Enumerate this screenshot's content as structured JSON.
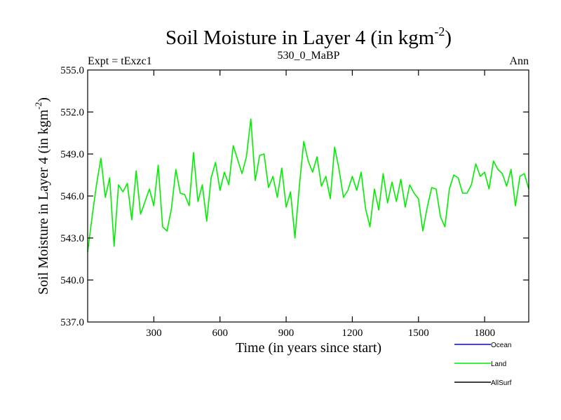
{
  "chart_data": {
    "type": "line",
    "title": "Soil Moisture in Layer 4 (in kgm",
    "title_exponent": "-2",
    "title_close": ")",
    "subtitle_left": "Expt = tExzc1",
    "subtitle_center": "530_0_MaBP",
    "subtitle_right": "Ann",
    "xlabel": "Time (in years since start)",
    "ylabel": "Soil Moisture in Layer 4 (in kgm",
    "ylabel_exponent": "-2",
    "ylabel_close": ")",
    "xlim": [
      0,
      2000
    ],
    "ylim": [
      537.0,
      555.0
    ],
    "xticks": [
      300,
      600,
      900,
      1200,
      1500,
      1800
    ],
    "xtick_labels": [
      "300",
      "600",
      "900",
      "1200",
      "1500",
      "1800"
    ],
    "yticks": [
      537.0,
      540.0,
      543.0,
      546.0,
      549.0,
      552.0,
      555.0
    ],
    "ytick_labels": [
      "537.0",
      "540.0",
      "543.0",
      "546.0",
      "549.0",
      "552.0",
      "555.0"
    ],
    "series": [
      {
        "name": "Land",
        "color": "#00ee00",
        "sample_step": 20,
        "values": [
          542.0,
          544.5,
          546.8,
          548.7,
          545.9,
          547.3,
          542.4,
          546.8,
          546.3,
          546.9,
          544.3,
          547.8,
          544.7,
          545.6,
          546.5,
          545.3,
          548.2,
          543.8,
          543.5,
          545.1,
          547.9,
          546.2,
          546.1,
          545.3,
          549.1,
          545.6,
          546.8,
          544.2,
          547.3,
          548.4,
          546.4,
          547.7,
          546.8,
          549.6,
          548.6,
          547.6,
          548.8,
          551.5,
          547.1,
          548.9,
          549.0,
          546.6,
          547.4,
          545.9,
          548.0,
          545.2,
          546.3,
          543.0,
          546.7,
          549.9,
          548.5,
          547.7,
          548.8,
          546.7,
          547.4,
          545.8,
          549.5,
          547.9,
          545.9,
          546.4,
          547.4,
          546.4,
          547.7,
          545.1,
          543.8,
          546.5,
          545.0,
          547.6,
          545.5,
          547.0,
          545.6,
          547.2,
          545.2,
          546.8,
          546.2,
          545.8,
          543.5,
          545.2,
          546.6,
          546.5,
          544.5,
          543.8,
          546.5,
          547.5,
          547.3,
          546.2,
          546.2,
          546.8,
          548.3,
          547.4,
          547.7,
          546.5,
          548.5,
          547.9,
          547.6,
          546.7,
          547.9,
          545.3,
          547.4,
          547.6,
          546.5
        ]
      },
      {
        "name": "Ocean",
        "color": "#0000ff",
        "values": []
      },
      {
        "name": "AllSurf",
        "color": "#000000",
        "values": []
      }
    ],
    "grid": false,
    "legend_position": "bottom-right",
    "legend": [
      {
        "label": "Ocean",
        "color": "#0000ff"
      },
      {
        "label": "Land",
        "color": "#00ee00"
      },
      {
        "label": "AllSurf",
        "color": "#000000"
      }
    ]
  }
}
